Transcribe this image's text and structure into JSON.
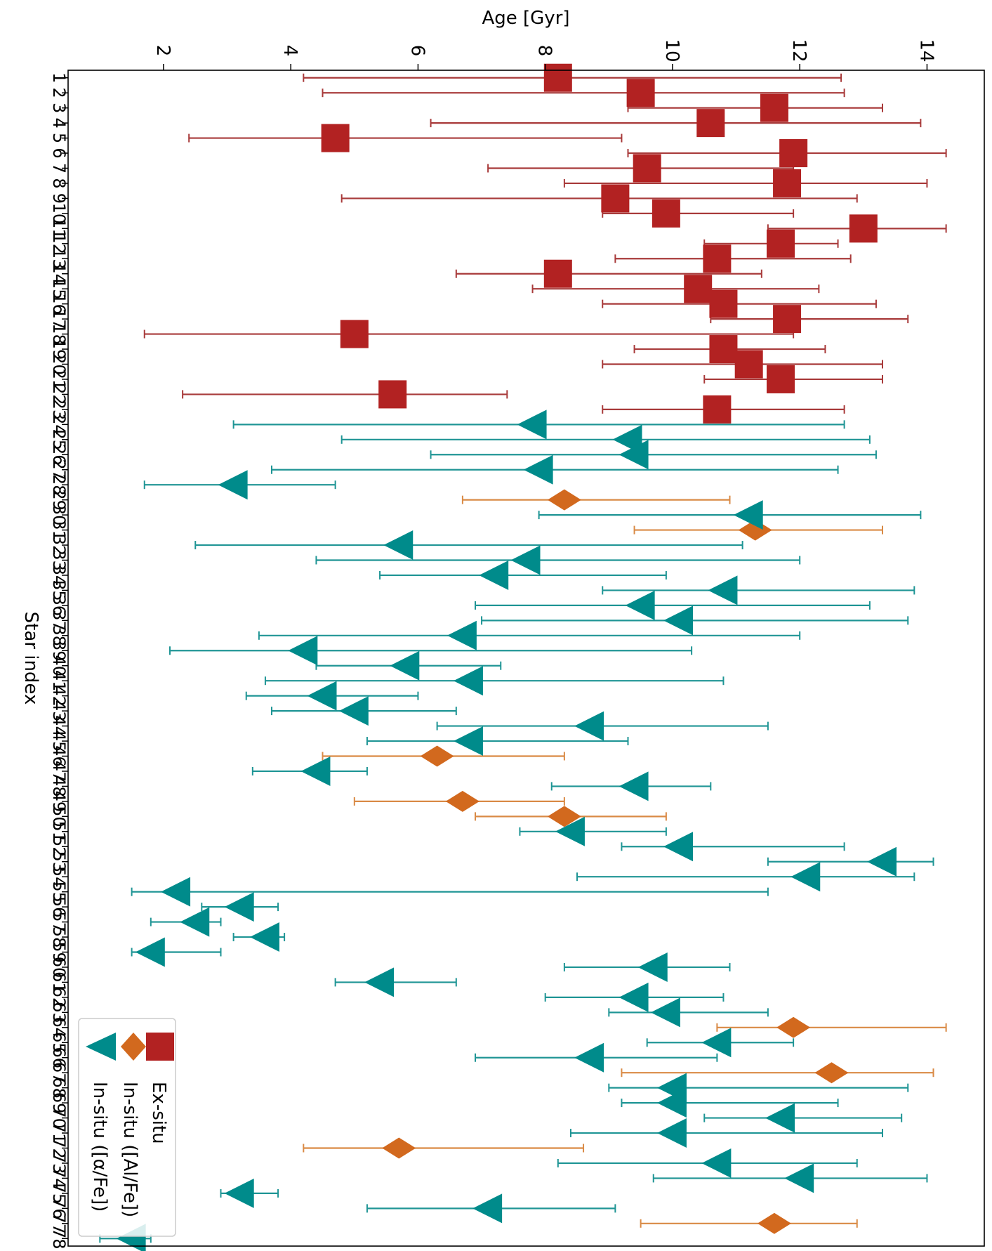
{
  "chart_data": {
    "type": "scatter",
    "title": "",
    "xlabel": "Age [Gyr]",
    "ylabel": "Star index",
    "xlim": [
      0.5,
      14.9
    ],
    "ylim": [
      0.5,
      78.5
    ],
    "x_ticks": [
      2,
      4,
      6,
      8,
      10,
      12,
      14
    ],
    "grid": false,
    "orientation": "rotated-90-clockwise",
    "legend_position": "bottom-left",
    "colors": {
      "ex_situ": "#b22222",
      "in_situ_al": "#d2691e",
      "in_situ_alpha": "#008b8b",
      "ex_situ_err": "#a83a3a",
      "in_situ_al_err": "#d98a45",
      "in_situ_alpha_err": "#1f9595"
    },
    "series": [
      {
        "name": "Ex-situ",
        "marker": "square",
        "points": [
          {
            "star": 1,
            "age": 8.2,
            "lo": 4.2,
            "hi": 12.65
          },
          {
            "star": 2,
            "age": 9.5,
            "lo": 4.5,
            "hi": 12.7
          },
          {
            "star": 3,
            "age": 11.6,
            "lo": 9.3,
            "hi": 13.3
          },
          {
            "star": 4,
            "age": 10.6,
            "lo": 6.2,
            "hi": 13.9
          },
          {
            "star": 5,
            "age": 4.7,
            "lo": 2.4,
            "hi": 9.2
          },
          {
            "star": 6,
            "age": 11.9,
            "lo": 9.3,
            "hi": 14.3
          },
          {
            "star": 7,
            "age": 9.6,
            "lo": 7.1,
            "hi": 11.9
          },
          {
            "star": 8,
            "age": 11.8,
            "lo": 8.3,
            "hi": 14.0
          },
          {
            "star": 9,
            "age": 9.1,
            "lo": 4.8,
            "hi": 12.9
          },
          {
            "star": 10,
            "age": 9.9,
            "lo": 8.9,
            "hi": 11.9
          },
          {
            "star": 11,
            "age": 13.0,
            "lo": 11.5,
            "hi": 14.3
          },
          {
            "star": 12,
            "age": 11.7,
            "lo": 10.5,
            "hi": 12.6
          },
          {
            "star": 13,
            "age": 10.7,
            "lo": 9.1,
            "hi": 12.8
          },
          {
            "star": 14,
            "age": 8.2,
            "lo": 6.6,
            "hi": 11.4
          },
          {
            "star": 15,
            "age": 10.4,
            "lo": 7.8,
            "hi": 12.3
          },
          {
            "star": 16,
            "age": 10.8,
            "lo": 8.9,
            "hi": 13.2
          },
          {
            "star": 17,
            "age": 11.8,
            "lo": 10.6,
            "hi": 13.7
          },
          {
            "star": 18,
            "age": 5.0,
            "lo": 1.7,
            "hi": 11.9
          },
          {
            "star": 19,
            "age": 10.8,
            "lo": 9.4,
            "hi": 12.4
          },
          {
            "star": 20,
            "age": 11.2,
            "lo": 8.9,
            "hi": 13.3
          },
          {
            "star": 21,
            "age": 11.7,
            "lo": 10.5,
            "hi": 13.3
          },
          {
            "star": 22,
            "age": 5.6,
            "lo": 2.3,
            "hi": 7.4
          },
          {
            "star": 23,
            "age": 10.7,
            "lo": 8.9,
            "hi": 12.7
          }
        ]
      },
      {
        "name": "In-situ ([Al/Fe])",
        "marker": "diamond",
        "points": [
          {
            "star": 29,
            "age": 8.3,
            "lo": 6.7,
            "hi": 10.9
          },
          {
            "star": 31,
            "age": 11.3,
            "lo": 9.4,
            "hi": 13.3
          },
          {
            "star": 46,
            "age": 6.3,
            "lo": 4.5,
            "hi": 8.3
          },
          {
            "star": 49,
            "age": 6.7,
            "lo": 5.0,
            "hi": 8.3
          },
          {
            "star": 50,
            "age": 8.3,
            "lo": 6.9,
            "hi": 9.9
          },
          {
            "star": 64,
            "age": 11.9,
            "lo": 10.7,
            "hi": 14.3
          },
          {
            "star": 67,
            "age": 12.5,
            "lo": 9.2,
            "hi": 14.1
          },
          {
            "star": 72,
            "age": 5.7,
            "lo": 4.2,
            "hi": 8.6
          },
          {
            "star": 77,
            "age": 11.6,
            "lo": 9.5,
            "hi": 12.9
          }
        ]
      },
      {
        "name": "In-situ ([α/Fe])",
        "marker": "triangle",
        "points": [
          {
            "star": 24,
            "age": 7.8,
            "lo": 3.1,
            "hi": 12.7
          },
          {
            "star": 25,
            "age": 9.3,
            "lo": 4.8,
            "hi": 13.1
          },
          {
            "star": 26,
            "age": 9.4,
            "lo": 6.2,
            "hi": 13.2
          },
          {
            "star": 27,
            "age": 7.9,
            "lo": 3.7,
            "hi": 12.6
          },
          {
            "star": 28,
            "age": 3.1,
            "lo": 1.7,
            "hi": 4.7
          },
          {
            "star": 30,
            "age": 11.2,
            "lo": 7.9,
            "hi": 13.9
          },
          {
            "star": 32,
            "age": 5.7,
            "lo": 2.5,
            "hi": 11.1
          },
          {
            "star": 33,
            "age": 7.7,
            "lo": 4.4,
            "hi": 12.0
          },
          {
            "star": 34,
            "age": 7.2,
            "lo": 5.4,
            "hi": 9.9
          },
          {
            "star": 35,
            "age": 10.8,
            "lo": 8.9,
            "hi": 13.8
          },
          {
            "star": 36,
            "age": 9.5,
            "lo": 6.9,
            "hi": 13.1
          },
          {
            "star": 37,
            "age": 10.1,
            "lo": 7.0,
            "hi": 13.7
          },
          {
            "star": 38,
            "age": 6.7,
            "lo": 3.5,
            "hi": 12.0
          },
          {
            "star": 39,
            "age": 4.2,
            "lo": 2.1,
            "hi": 10.3
          },
          {
            "star": 40,
            "age": 5.8,
            "lo": 4.4,
            "hi": 7.3
          },
          {
            "star": 41,
            "age": 6.8,
            "lo": 3.6,
            "hi": 10.8
          },
          {
            "star": 42,
            "age": 4.5,
            "lo": 3.3,
            "hi": 6.0
          },
          {
            "star": 43,
            "age": 5.0,
            "lo": 3.7,
            "hi": 6.6
          },
          {
            "star": 44,
            "age": 8.7,
            "lo": 6.3,
            "hi": 11.5
          },
          {
            "star": 45,
            "age": 6.8,
            "lo": 5.2,
            "hi": 9.3
          },
          {
            "star": 47,
            "age": 4.4,
            "lo": 3.4,
            "hi": 5.2
          },
          {
            "star": 48,
            "age": 9.4,
            "lo": 8.1,
            "hi": 10.6
          },
          {
            "star": 51,
            "age": 8.4,
            "lo": 7.6,
            "hi": 9.9
          },
          {
            "star": 52,
            "age": 10.1,
            "lo": 9.2,
            "hi": 12.7
          },
          {
            "star": 53,
            "age": 13.3,
            "lo": 11.5,
            "hi": 14.1
          },
          {
            "star": 54,
            "age": 12.1,
            "lo": 8.5,
            "hi": 13.8
          },
          {
            "star": 55,
            "age": 2.2,
            "lo": 1.5,
            "hi": 11.5
          },
          {
            "star": 56,
            "age": 3.2,
            "lo": 2.6,
            "hi": 3.8
          },
          {
            "star": 57,
            "age": 2.5,
            "lo": 1.8,
            "hi": 2.9
          },
          {
            "star": 58,
            "age": 3.6,
            "lo": 3.1,
            "hi": 3.9
          },
          {
            "star": 59,
            "age": 1.8,
            "lo": 1.5,
            "hi": 2.9
          },
          {
            "star": 60,
            "age": 9.7,
            "lo": 8.3,
            "hi": 10.9
          },
          {
            "star": 61,
            "age": 5.4,
            "lo": 4.7,
            "hi": 6.6
          },
          {
            "star": 62,
            "age": 9.4,
            "lo": 8.0,
            "hi": 10.8
          },
          {
            "star": 63,
            "age": 9.9,
            "lo": 9.0,
            "hi": 11.5
          },
          {
            "star": 65,
            "age": 10.7,
            "lo": 9.6,
            "hi": 11.9
          },
          {
            "star": 66,
            "age": 8.7,
            "lo": 6.9,
            "hi": 10.7
          },
          {
            "star": 68,
            "age": 10.0,
            "lo": 9.0,
            "hi": 13.7
          },
          {
            "star": 69,
            "age": 10.0,
            "lo": 9.2,
            "hi": 12.6
          },
          {
            "star": 70,
            "age": 11.7,
            "lo": 10.5,
            "hi": 13.6
          },
          {
            "star": 71,
            "age": 10.0,
            "lo": 8.4,
            "hi": 13.3
          },
          {
            "star": 73,
            "age": 10.7,
            "lo": 8.2,
            "hi": 12.9
          },
          {
            "star": 74,
            "age": 12.0,
            "lo": 9.7,
            "hi": 14.0
          },
          {
            "star": 75,
            "age": 3.2,
            "lo": 2.9,
            "hi": 3.8
          },
          {
            "star": 76,
            "age": 7.1,
            "lo": 5.2,
            "hi": 9.1
          },
          {
            "star": 78,
            "age": 1.5,
            "lo": 1.0,
            "hi": 1.8
          }
        ]
      }
    ]
  }
}
